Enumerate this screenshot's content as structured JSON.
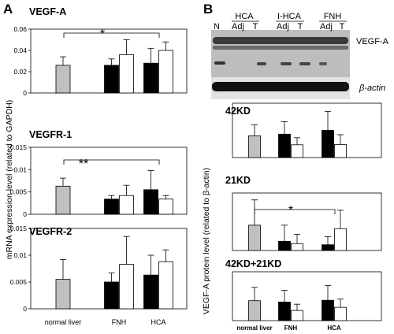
{
  "panel_a": {
    "letter": "A",
    "ylabel": "mRNA expression level (related to GAPDH)"
  },
  "panel_b": {
    "letter": "B",
    "ylabel": "VEGF-A protein level (related to β-actin)"
  },
  "blot": {
    "groups": [
      "HCA",
      "I-HCA",
      "FNH"
    ],
    "lanes": [
      "N",
      "Adj",
      "T",
      "Adj",
      "T",
      "Adj",
      "T"
    ],
    "bands": [
      "VEGF-A",
      "β-actin"
    ]
  },
  "colors": {
    "normal": "#c0c0c0",
    "adjacent": "#000000",
    "tumor": "#ffffff"
  },
  "chart_data": [
    {
      "type": "bar",
      "title": "VEGF-A",
      "categories": [
        "normal liver",
        "FNH",
        "HCA"
      ],
      "series": [
        {
          "values": [
            0.026,
            0.026,
            0.028
          ],
          "errors": [
            0.008,
            0.006,
            0.014
          ]
        },
        {
          "values": [
            null,
            0.036,
            0.04
          ],
          "errors": [
            null,
            0.014,
            0.008
          ]
        }
      ],
      "ylim": [
        0,
        0.06
      ],
      "yticks": [
        "0",
        "0.02",
        "0.04",
        "0.06"
      ],
      "annotations": [
        {
          "text": "*",
          "between": [
            "normal liver",
            "HCA"
          ]
        }
      ]
    },
    {
      "type": "bar",
      "title": "VEGFR-1",
      "categories": [
        "normal liver",
        "FNH",
        "HCA"
      ],
      "series": [
        {
          "values": [
            0.0063,
            0.0034,
            0.0055
          ],
          "errors": [
            0.0018,
            0.0008,
            0.0043
          ]
        },
        {
          "values": [
            null,
            0.0042,
            0.0034
          ],
          "errors": [
            null,
            0.0023,
            0.0008
          ]
        }
      ],
      "ylim": [
        0,
        0.015
      ],
      "yticks": [
        "0",
        "0.005",
        "0.01",
        "0.015"
      ],
      "annotations": [
        {
          "text": "**",
          "between": [
            "normal liver",
            "HCA"
          ]
        }
      ]
    },
    {
      "type": "bar",
      "title": "VEGFR-2",
      "categories": [
        "normal liver",
        "FNH",
        "HCA"
      ],
      "series": [
        {
          "values": [
            0.0055,
            0.005,
            0.0063
          ],
          "errors": [
            0.0037,
            0.0017,
            0.0037
          ]
        },
        {
          "values": [
            null,
            0.0083,
            0.0088
          ],
          "errors": [
            null,
            0.0052,
            0.0022
          ]
        }
      ],
      "ylim": [
        0,
        0.015
      ],
      "yticks": [
        "0",
        "0.005",
        "0.01",
        "0.015"
      ]
    },
    {
      "type": "bar",
      "title": "42KD",
      "categories": [
        "normal liver",
        "FNH",
        "HCA"
      ],
      "series": [
        {
          "values": [
            0.8,
            0.86,
            1.0
          ],
          "errors": [
            0.4,
            0.46,
            0.7
          ]
        },
        {
          "values": [
            null,
            0.47,
            0.48
          ],
          "errors": [
            null,
            0.26,
            0.36
          ]
        }
      ],
      "ylim": [
        0,
        2
      ]
    },
    {
      "type": "bar",
      "title": "21KD",
      "categories": [
        "normal liver",
        "FNH",
        "HCA"
      ],
      "series": [
        {
          "values": [
            0.22,
            0.08,
            0.05
          ],
          "errors": [
            0.22,
            0.14,
            0.07
          ]
        },
        {
          "values": [
            null,
            0.06,
            0.19
          ],
          "errors": [
            null,
            0.08,
            0.16
          ]
        }
      ],
      "ylim": [
        0,
        0.5
      ],
      "annotations": [
        {
          "text": "*",
          "between": [
            "normal liver",
            "HCA"
          ]
        }
      ]
    },
    {
      "type": "bar",
      "title": "42KD+21KD",
      "categories": [
        "normal liver",
        "FNH",
        "HCA"
      ],
      "series": [
        {
          "values": [
            1.02,
            0.95,
            1.04
          ],
          "errors": [
            0.68,
            0.6,
            0.75
          ]
        },
        {
          "values": [
            null,
            0.52,
            0.68
          ],
          "errors": [
            null,
            0.32,
            0.42
          ]
        }
      ],
      "ylim": [
        0,
        2.5
      ]
    }
  ]
}
